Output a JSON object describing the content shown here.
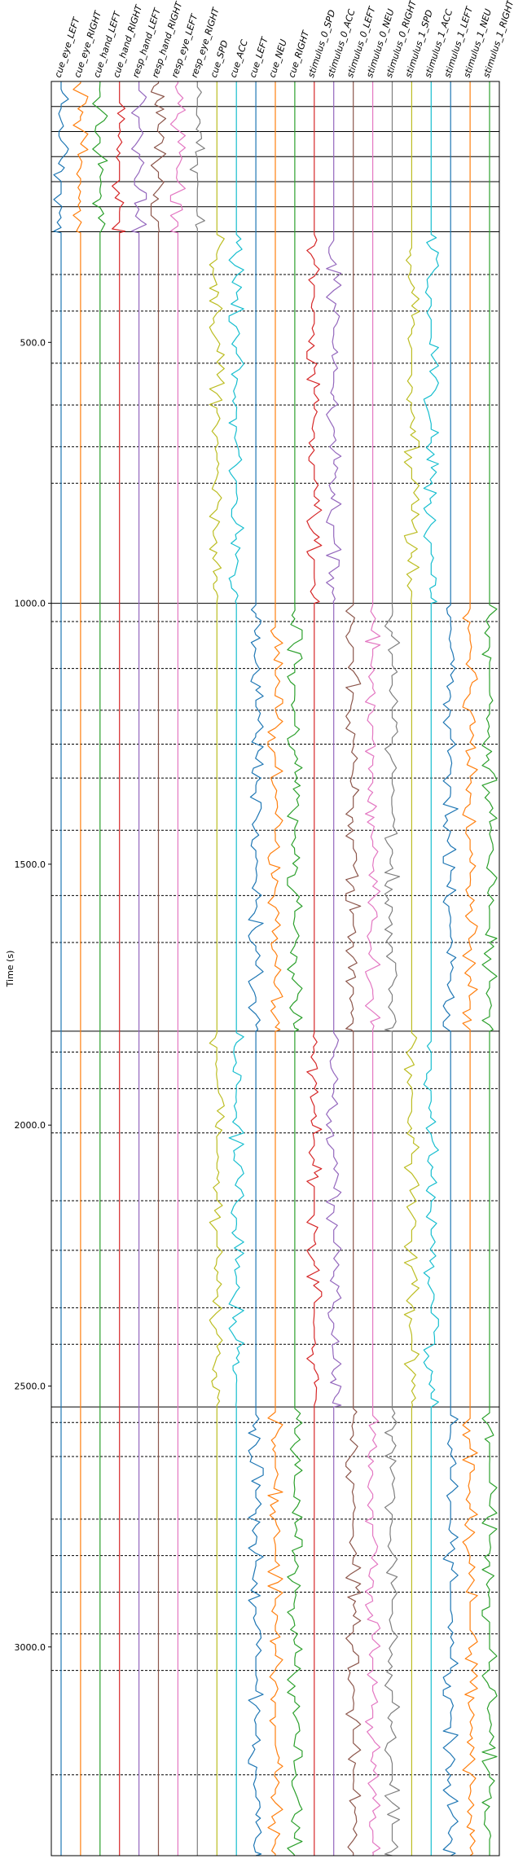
{
  "chart_data": {
    "type": "line",
    "ylabel": "Time (s)",
    "ylim": [
      3400,
      0
    ],
    "yticks": [
      "500.0",
      "1000.0",
      "1500.0",
      "2000.0",
      "2500.0",
      "3000.0"
    ],
    "ytick_values": [
      500,
      1000,
      1500,
      2000,
      2500,
      3000
    ],
    "channels": [
      {
        "name": "cue_eye_LEFT",
        "color": "#1f77b4"
      },
      {
        "name": "cue_eye_RIGHT",
        "color": "#ff7f0e"
      },
      {
        "name": "cue_hand_LEFT",
        "color": "#2ca02c"
      },
      {
        "name": "cue_hand_RIGHT",
        "color": "#d62728"
      },
      {
        "name": "resp_hand_LEFT",
        "color": "#9467bd"
      },
      {
        "name": "resp_hand_RIGHT",
        "color": "#8c564b"
      },
      {
        "name": "resp_eye_LEFT",
        "color": "#e377c2"
      },
      {
        "name": "resp_eye_RIGHT",
        "color": "#7f7f7f"
      },
      {
        "name": "cue_SPD",
        "color": "#bcbd22"
      },
      {
        "name": "cue_ACC",
        "color": "#17becf"
      },
      {
        "name": "cue_LEFT",
        "color": "#1f77b4"
      },
      {
        "name": "cue_NEU",
        "color": "#ff7f0e"
      },
      {
        "name": "cue_RIGHT",
        "color": "#2ca02c"
      },
      {
        "name": "stimulus_0_SPD",
        "color": "#d62728"
      },
      {
        "name": "stimulus_0_ACC",
        "color": "#9467bd"
      },
      {
        "name": "stimulus_0_LEFT",
        "color": "#8c564b"
      },
      {
        "name": "stimulus_0_NEU",
        "color": "#e377c2"
      },
      {
        "name": "stimulus_0_RIGHT",
        "color": "#7f7f7f"
      },
      {
        "name": "stimulus_1_SPD",
        "color": "#bcbd22"
      },
      {
        "name": "stimulus_1_ACC",
        "color": "#17becf"
      },
      {
        "name": "stimulus_1_LEFT",
        "color": "#1f77b4"
      },
      {
        "name": "stimulus_1_NEU",
        "color": "#ff7f0e"
      },
      {
        "name": "stimulus_1_RIGHT",
        "color": "#2ca02c"
      }
    ],
    "solid_event_lines": [
      48,
      96,
      144,
      192,
      240,
      288,
      1000,
      1820,
      2540
    ],
    "dashed_event_lines": [
      370,
      440,
      540,
      620,
      700,
      770,
      1035,
      1125,
      1205,
      1270,
      1335,
      1435,
      1560,
      1650,
      1860,
      1930,
      2015,
      2145,
      2240,
      2350,
      2420,
      2570,
      2635,
      2755,
      2825,
      2895,
      2975,
      3045,
      3245
    ],
    "blocks": [
      {
        "range": [
          0,
          290
        ],
        "active": [
          0,
          1,
          2,
          3,
          4,
          5,
          6,
          7
        ]
      },
      {
        "range": [
          290,
          1000
        ],
        "active": [
          8,
          9,
          13,
          14,
          18,
          19
        ]
      },
      {
        "range": [
          1000,
          1820
        ],
        "active": [
          10,
          11,
          12,
          15,
          16,
          17,
          20,
          21,
          22
        ]
      },
      {
        "range": [
          1820,
          2540
        ],
        "active": [
          8,
          9,
          13,
          14,
          18,
          19
        ]
      },
      {
        "range": [
          2540,
          3400
        ],
        "active": [
          10,
          11,
          12,
          15,
          16,
          17,
          20,
          21,
          22
        ]
      }
    ]
  }
}
